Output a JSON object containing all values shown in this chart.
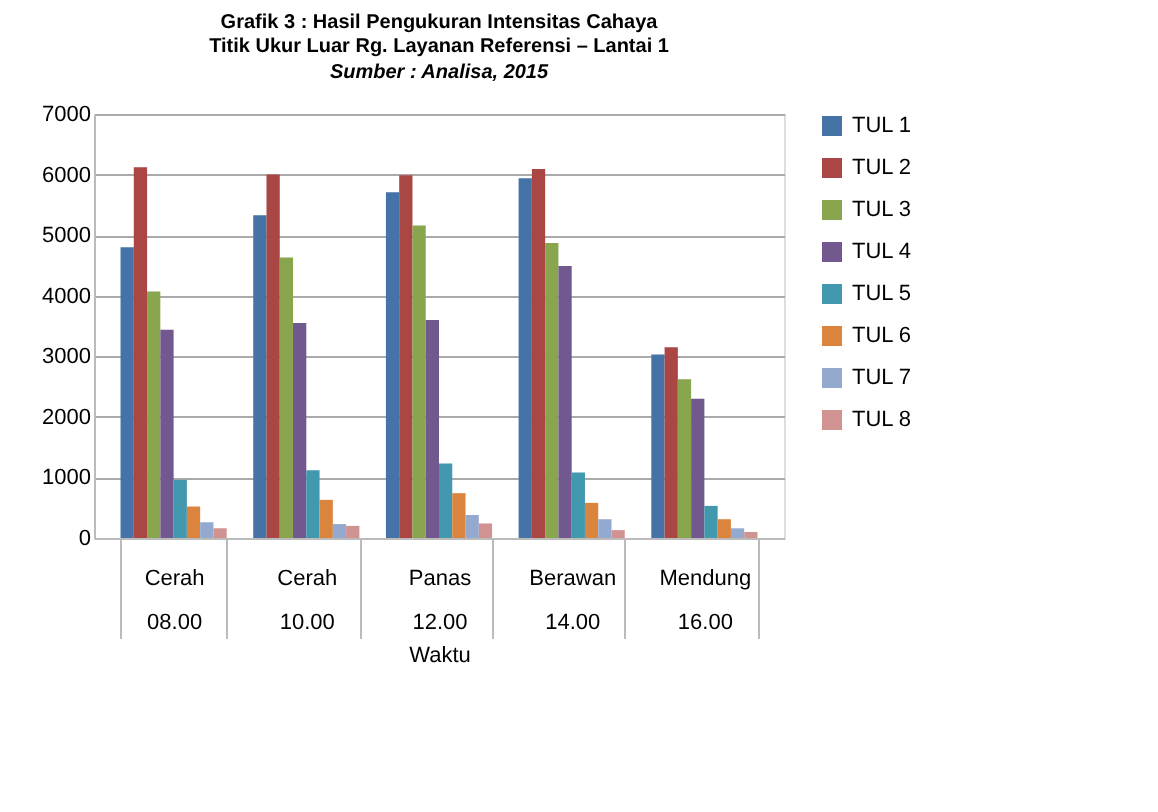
{
  "chart_data": {
    "type": "bar",
    "title": [
      "Grafik 3 : Hasil Pengukuran Intensitas Cahaya",
      "Titik Ukur Luar Rg. Layanan Referensi – Lantai 1"
    ],
    "subtitle": "Sumber : Analisa, 2015",
    "xlabel": "Waktu",
    "categories": [
      "Cerah 08.00",
      "Cerah 10.00",
      "Panas 12.00",
      "Berawan 14.00",
      "Mendung 16.00"
    ],
    "series": [
      {
        "name": "TUL 1",
        "color": "#4572a7",
        "values": [
          4800,
          5330,
          5710,
          5940,
          3030
        ]
      },
      {
        "name": "TUL 2",
        "color": "#aa4643",
        "values": [
          6120,
          6000,
          5990,
          6090,
          3150
        ]
      },
      {
        "name": "TUL 3",
        "color": "#89a54e",
        "values": [
          4070,
          4630,
          5160,
          4870,
          2620
        ]
      },
      {
        "name": "TUL 4",
        "color": "#71588f",
        "values": [
          3440,
          3550,
          3600,
          4490,
          2300
        ]
      },
      {
        "name": "TUL 5",
        "color": "#4198af",
        "values": [
          960,
          1120,
          1230,
          1080,
          530
        ]
      },
      {
        "name": "TUL 6",
        "color": "#db843d",
        "values": [
          520,
          630,
          740,
          580,
          310
        ]
      },
      {
        "name": "TUL 7",
        "color": "#93a9cf",
        "values": [
          260,
          230,
          380,
          310,
          160
        ]
      },
      {
        "name": "TUL 8",
        "color": "#d19392",
        "values": [
          160,
          200,
          240,
          130,
          100
        ]
      }
    ],
    "ylim": [
      0,
      7000
    ],
    "yticks": [
      0,
      1000,
      2000,
      3000,
      4000,
      5000,
      6000,
      7000
    ],
    "grid": "y",
    "legend": "right"
  }
}
